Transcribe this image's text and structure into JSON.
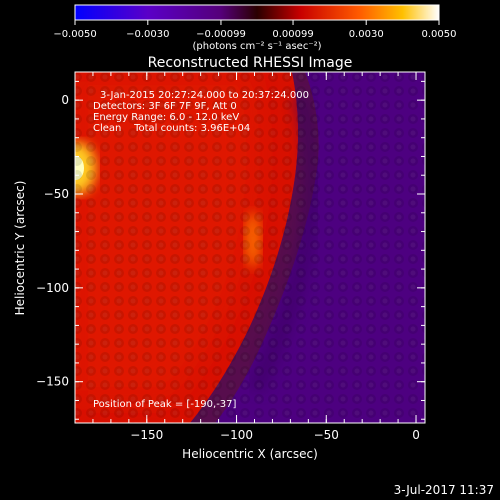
{
  "colorbar": {
    "ticks": [
      "-0.0050",
      "-0.0030",
      "-0.00099",
      "0.00099",
      "0.0030",
      "0.0050"
    ],
    "min": -0.005,
    "max": 0.005,
    "unit_label": "(photons cm⁻² s⁻¹ asec⁻²)",
    "colors": [
      "#0000ff",
      "#6a008a",
      "#2a0000",
      "#ff0000",
      "#ff8c00",
      "#ffffff"
    ]
  },
  "chart_data": {
    "type": "heatmap",
    "title": "Reconstructed RHESSI Image",
    "xlabel": "Heliocentric X (arcsec)",
    "ylabel": "Heliocentric Y (arcsec)",
    "xlim": [
      -190,
      5
    ],
    "ylim": [
      -172,
      15
    ],
    "x_ticks": [
      -150,
      -100,
      -50,
      0
    ],
    "y_ticks": [
      0,
      -50,
      -100,
      -150
    ],
    "annotations": [
      "3-Jan-2015 20:27:24.000 to 20:37:24.000",
      "Detectors: 3F 6F 7F 9F, Att 0",
      "Energy Range: 6.0 - 12.0 keV",
      "Clean    Total counts: 3.96E+04"
    ],
    "peak_label": "Position of Peak = [-190,-37]",
    "peak": {
      "x": -190,
      "y": -37
    }
  },
  "footer": {
    "timestamp": "3-Jul-2017 11:37"
  }
}
